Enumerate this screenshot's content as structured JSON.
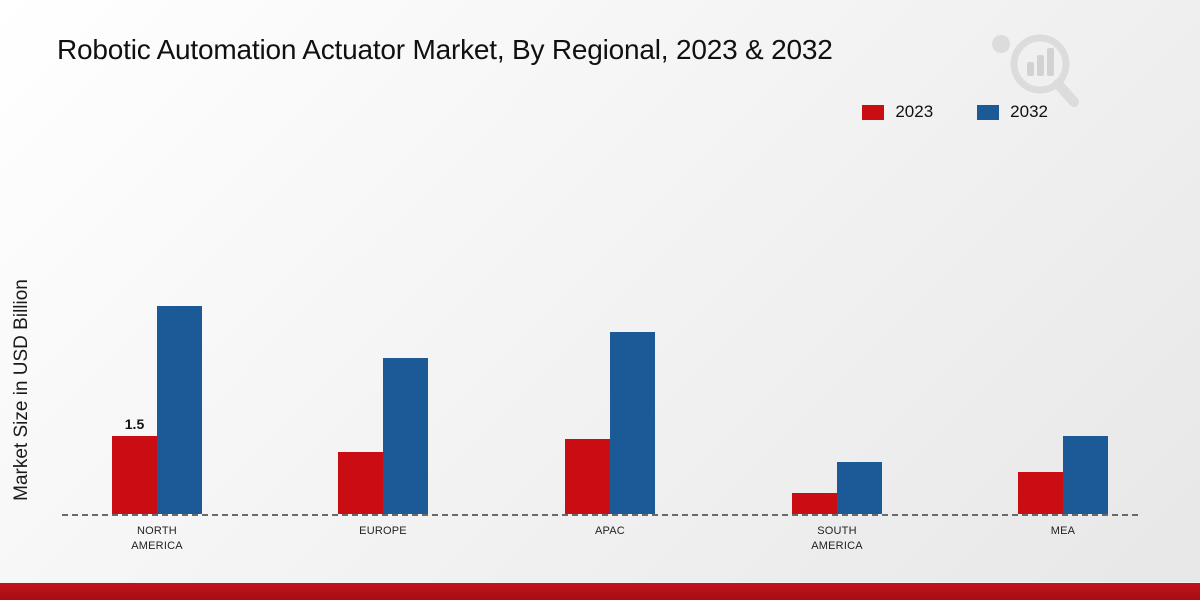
{
  "chart_data": {
    "type": "bar",
    "title": "Robotic Automation Actuator Market, By Regional, 2023 & 2032",
    "ylabel": "Market Size in USD Billion",
    "categories": [
      "NORTH AMERICA",
      "EUROPE",
      "APAC",
      "SOUTH AMERICA",
      "MEA"
    ],
    "series": [
      {
        "name": "2023",
        "color": "#c90d12",
        "values": [
          1.5,
          1.2,
          1.45,
          0.4,
          0.8
        ]
      },
      {
        "name": "2032",
        "color": "#1c5a97",
        "values": [
          4.0,
          3.0,
          3.5,
          1.0,
          1.5
        ]
      }
    ],
    "annotations": [
      {
        "category": "NORTH AMERICA",
        "series": "2023",
        "text": "1.5"
      }
    ],
    "ylim": [
      0,
      4.5
    ],
    "grid": false,
    "legend_position": "top-right",
    "baseline_style": "dashed",
    "accent_footer_color": "#b11217"
  }
}
